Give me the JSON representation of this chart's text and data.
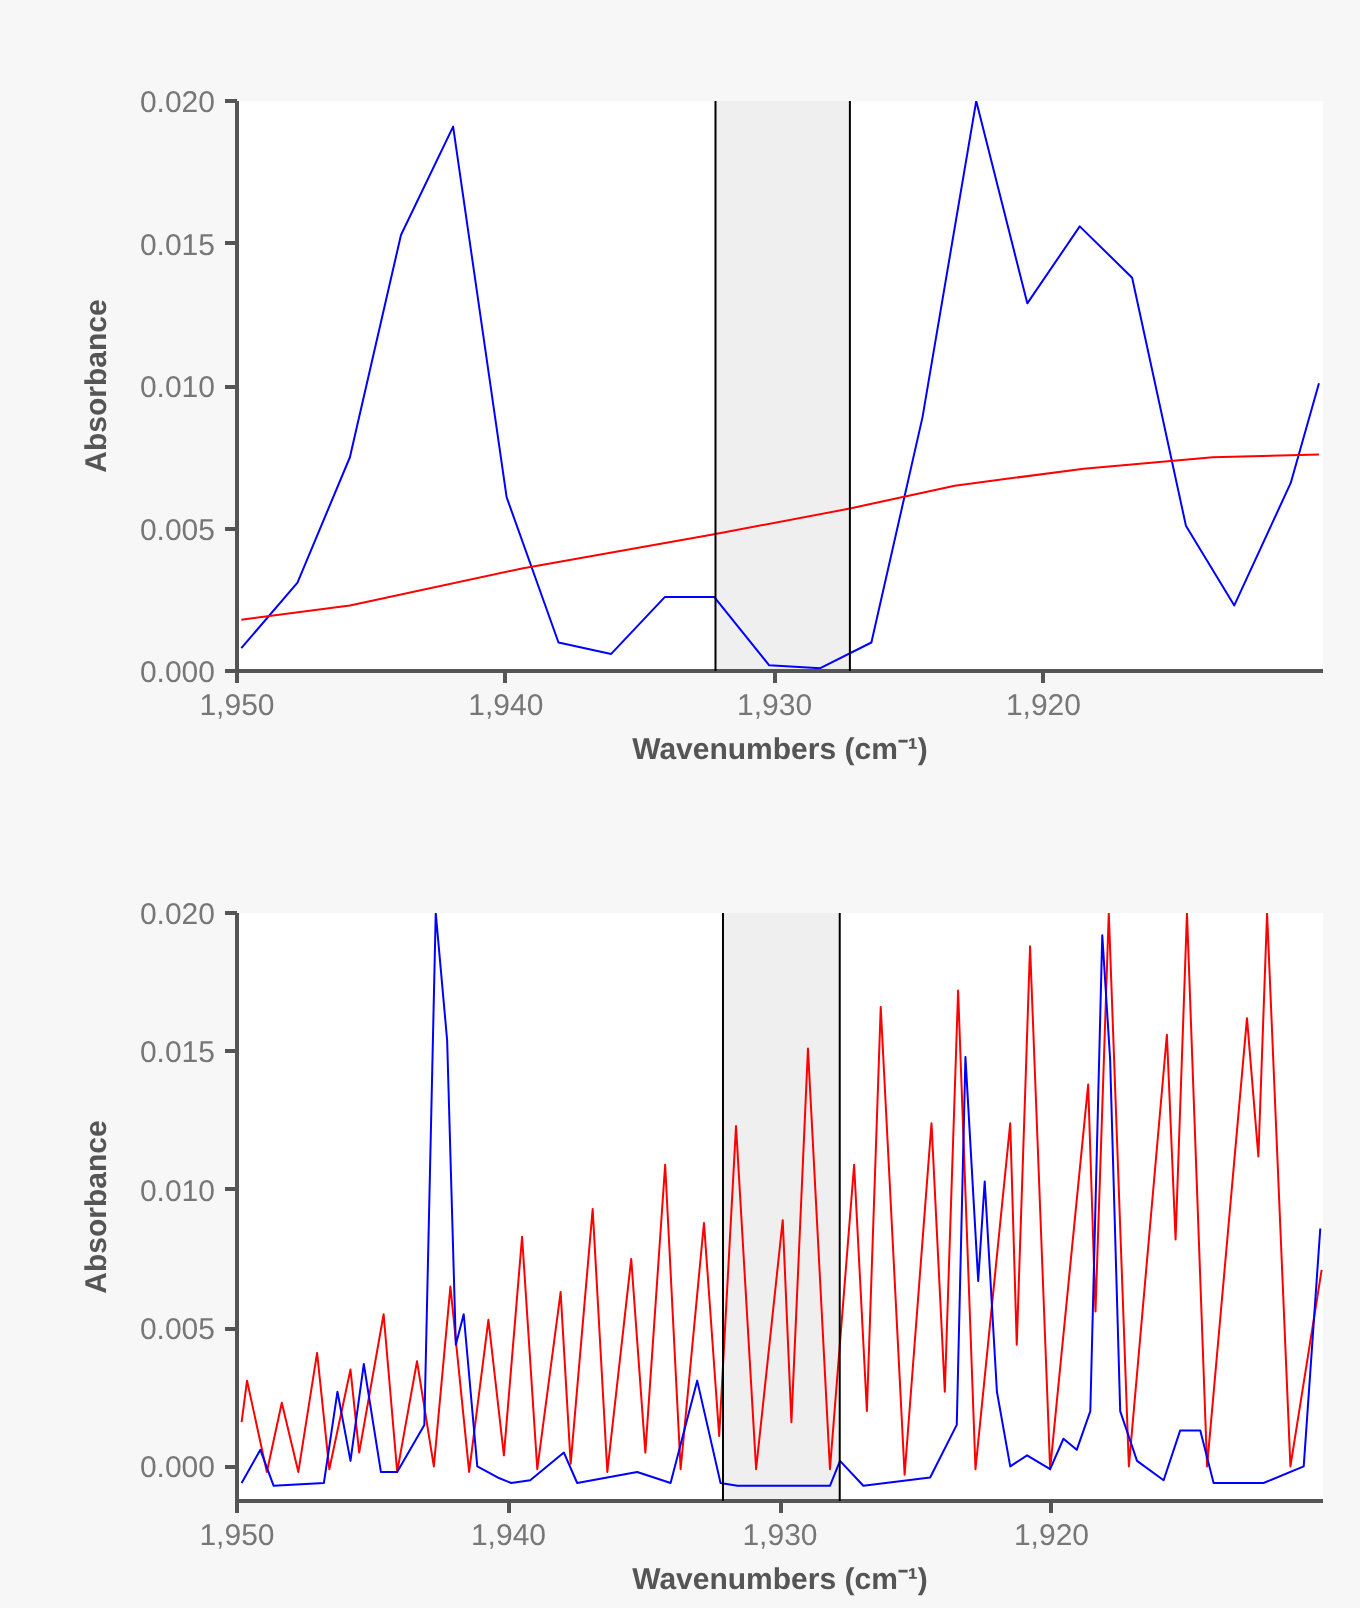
{
  "chart_data": [
    {
      "type": "line",
      "xlabel": "Wavenumbers (cm⁻¹)",
      "ylabel": "Absorbance",
      "xlim": [
        1950,
        1909.6
      ],
      "ylim": [
        0,
        0.02
      ],
      "xticks": [
        {
          "value": 1950,
          "label": "1,950"
        },
        {
          "value": 1940,
          "label": "1,940"
        },
        {
          "value": 1930,
          "label": "1,930"
        },
        {
          "value": 1920,
          "label": "1,920"
        }
      ],
      "yticks": [
        {
          "value": 0,
          "label": "0.000"
        },
        {
          "value": 0.005,
          "label": "0.005"
        },
        {
          "value": 0.01,
          "label": "0.010"
        },
        {
          "value": 0.015,
          "label": "0.015"
        },
        {
          "value": 0.02,
          "label": "0.020"
        }
      ],
      "grid": false,
      "bands": [
        {
          "axis": "x",
          "from": 1932.2,
          "to": 1927.2,
          "color": "#efefef"
        }
      ],
      "ref_lines": [
        {
          "axis": "x",
          "value": 1932.2,
          "color": "#000000"
        },
        {
          "axis": "x",
          "value": 1927.2,
          "color": "#000000"
        }
      ],
      "series": [
        {
          "color": "#0000ff",
          "x": [
            1949.84,
            1947.75,
            1945.8,
            1943.9,
            1941.96,
            1939.97,
            1938.04,
            1936.08,
            1934.08,
            1932.25,
            1930.2,
            1928.3,
            1926.4,
            1924.5,
            1922.5,
            1920.6,
            1918.65,
            1916.7,
            1914.7,
            1912.9,
            1910.8,
            1909.75
          ],
          "values": [
            0.0008,
            0.0031,
            0.0075,
            0.0153,
            0.0191,
            0.0061,
            0.001,
            0.0006,
            0.0026,
            0.0026,
            0.0002,
            0.0001,
            0.001,
            0.0089,
            0.02,
            0.0129,
            0.0156,
            0.0138,
            0.0051,
            0.0023,
            0.0066,
            0.0101
          ]
        },
        {
          "color": "#ff0000",
          "x": [
            1949.84,
            1945.8,
            1939.4,
            1932.25,
            1927.2,
            1923.3,
            1918.5,
            1913.7,
            1909.75
          ],
          "values": [
            0.0018,
            0.0023,
            0.0036,
            0.0048,
            0.0057,
            0.0065,
            0.0071,
            0.0075,
            0.0076
          ]
        }
      ]
    },
    {
      "type": "line",
      "xlabel": "Wavenumbers (cm⁻¹)",
      "ylabel": "Absorbance",
      "xlim": [
        1950,
        1910.0
      ],
      "ylim": [
        -0.00125,
        0.02
      ],
      "xticks": [
        {
          "value": 1950,
          "label": "1,950"
        },
        {
          "value": 1940,
          "label": "1,940"
        },
        {
          "value": 1930,
          "label": "1,930"
        },
        {
          "value": 1920,
          "label": "1,920"
        }
      ],
      "yticks": [
        {
          "value": 0,
          "label": "0.000"
        },
        {
          "value": 0.005,
          "label": "0.005"
        },
        {
          "value": 0.01,
          "label": "0.010"
        },
        {
          "value": 0.015,
          "label": "0.015"
        },
        {
          "value": 0.02,
          "label": "0.020"
        }
      ],
      "grid": false,
      "bands": [
        {
          "axis": "x",
          "from": 1932.1,
          "to": 1927.8,
          "color": "#efefef"
        }
      ],
      "ref_lines": [
        {
          "axis": "x",
          "value": 1932.1,
          "color": "#000000"
        },
        {
          "axis": "x",
          "value": 1927.8,
          "color": "#000000"
        }
      ],
      "series": [
        {
          "color": "#ff0000",
          "x": [
            1949.83,
            1949.63,
            1948.9,
            1948.35,
            1947.74,
            1947.05,
            1946.6,
            1945.82,
            1945.5,
            1944.6,
            1944.1,
            1943.37,
            1942.75,
            1942.14,
            1941.45,
            1940.74,
            1940.17,
            1939.5,
            1938.94,
            1938.08,
            1937.71,
            1936.9,
            1936.36,
            1935.48,
            1934.96,
            1934.23,
            1933.66,
            1932.8,
            1932.24,
            1931.62,
            1930.88,
            1929.9,
            1929.58,
            1928.97,
            1928.16,
            1927.27,
            1926.8,
            1926.29,
            1925.41,
            1924.42,
            1923.93,
            1923.44,
            1922.8,
            1921.52,
            1921.28,
            1920.79,
            1920.05,
            1918.65,
            1918.38,
            1917.89,
            1917.15,
            1915.75,
            1915.43,
            1915.01,
            1914.27,
            1912.8,
            1912.38,
            1912.06,
            1911.2,
            1910.05
          ],
          "values": [
            0.0016,
            0.0031,
            -0.0002,
            0.0023,
            -0.0002,
            0.0041,
            -0.0001,
            0.0035,
            0.0005,
            0.0055,
            -0.0002,
            0.0038,
            0.0,
            0.0065,
            -0.0002,
            0.0053,
            0.0004,
            0.0083,
            -0.0001,
            0.0063,
            0.0001,
            0.0093,
            -0.0002,
            0.0075,
            0.0005,
            0.0109,
            -0.0001,
            0.0088,
            0.0011,
            0.0123,
            -0.0001,
            0.0089,
            0.0016,
            0.0151,
            -0.0001,
            0.0109,
            0.002,
            0.0166,
            -0.0003,
            0.0124,
            0.0027,
            0.0172,
            -0.0001,
            0.0124,
            0.0044,
            0.0188,
            -0.0001,
            0.0138,
            0.0056,
            0.02,
            0.0,
            0.0156,
            0.0082,
            0.02,
            0.0,
            0.0162,
            0.0112,
            0.02,
            0.0,
            0.0071
          ]
        },
        {
          "color": "#0000ff",
          "x": [
            1949.83,
            1949.14,
            1948.65,
            1946.8,
            1946.3,
            1945.82,
            1945.33,
            1944.7,
            1944.1,
            1943.1,
            1942.68,
            1942.26,
            1941.94,
            1941.65,
            1941.15,
            1940.4,
            1939.9,
            1939.2,
            1937.96,
            1937.47,
            1935.26,
            1934.03,
            1933.05,
            1932.19,
            1931.57,
            1928.16,
            1927.79,
            1926.93,
            1924.47,
            1923.49,
            1923.17,
            1922.7,
            1922.46,
            1922.01,
            1921.52,
            1920.9,
            1920.05,
            1919.56,
            1919.07,
            1918.57,
            1918.13,
            1917.84,
            1917.47,
            1916.85,
            1915.87,
            1915.26,
            1914.52,
            1914.03,
            1912.19,
            1910.71,
            1910.1
          ],
          "values": [
            -0.0006,
            0.0006,
            -0.0007,
            -0.0006,
            0.0027,
            0.0002,
            0.0037,
            -0.0002,
            -0.0002,
            0.0015,
            0.02,
            0.0154,
            0.0044,
            0.0055,
            0.0,
            -0.0004,
            -0.0006,
            -0.0005,
            0.0005,
            -0.0006,
            -0.0002,
            -0.0006,
            0.0031,
            -0.0006,
            -0.0007,
            -0.0007,
            0.0002,
            -0.0007,
            -0.0004,
            0.0015,
            0.0148,
            0.0067,
            0.0103,
            0.0027,
            0.0,
            0.0004,
            -0.0001,
            0.001,
            0.0006,
            0.002,
            0.0192,
            0.0147,
            0.002,
            0.0002,
            -0.0005,
            0.0013,
            0.0013,
            -0.0006,
            -0.0006,
            0.0,
            0.0086
          ]
        }
      ]
    }
  ]
}
